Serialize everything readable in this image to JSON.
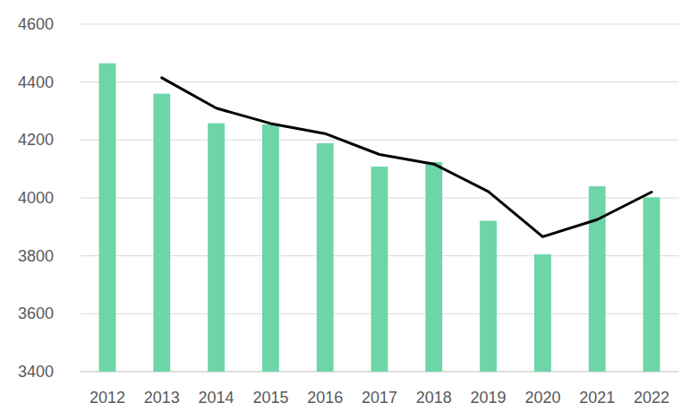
{
  "chart_data": {
    "type": "bar",
    "categories": [
      "2012",
      "2013",
      "2014",
      "2015",
      "2016",
      "2017",
      "2018",
      "2019",
      "2020",
      "2021",
      "2022"
    ],
    "series": [
      {
        "type": "bar",
        "color": "#6dd5a7",
        "values": [
          4465,
          4360,
          4258,
          4254,
          4189,
          4108,
          4124,
          3921,
          3805,
          4040,
          4002
        ]
      },
      {
        "type": "line",
        "color": "#000000",
        "values": [
          null,
          4415,
          4310,
          4257,
          4222,
          4150,
          4117,
          4022,
          3866,
          3925,
          4020
        ]
      }
    ],
    "ylim": [
      3400,
      4600
    ],
    "yticks": [
      3400,
      3600,
      3800,
      4000,
      4200,
      4400,
      4600
    ],
    "grid": true
  }
}
